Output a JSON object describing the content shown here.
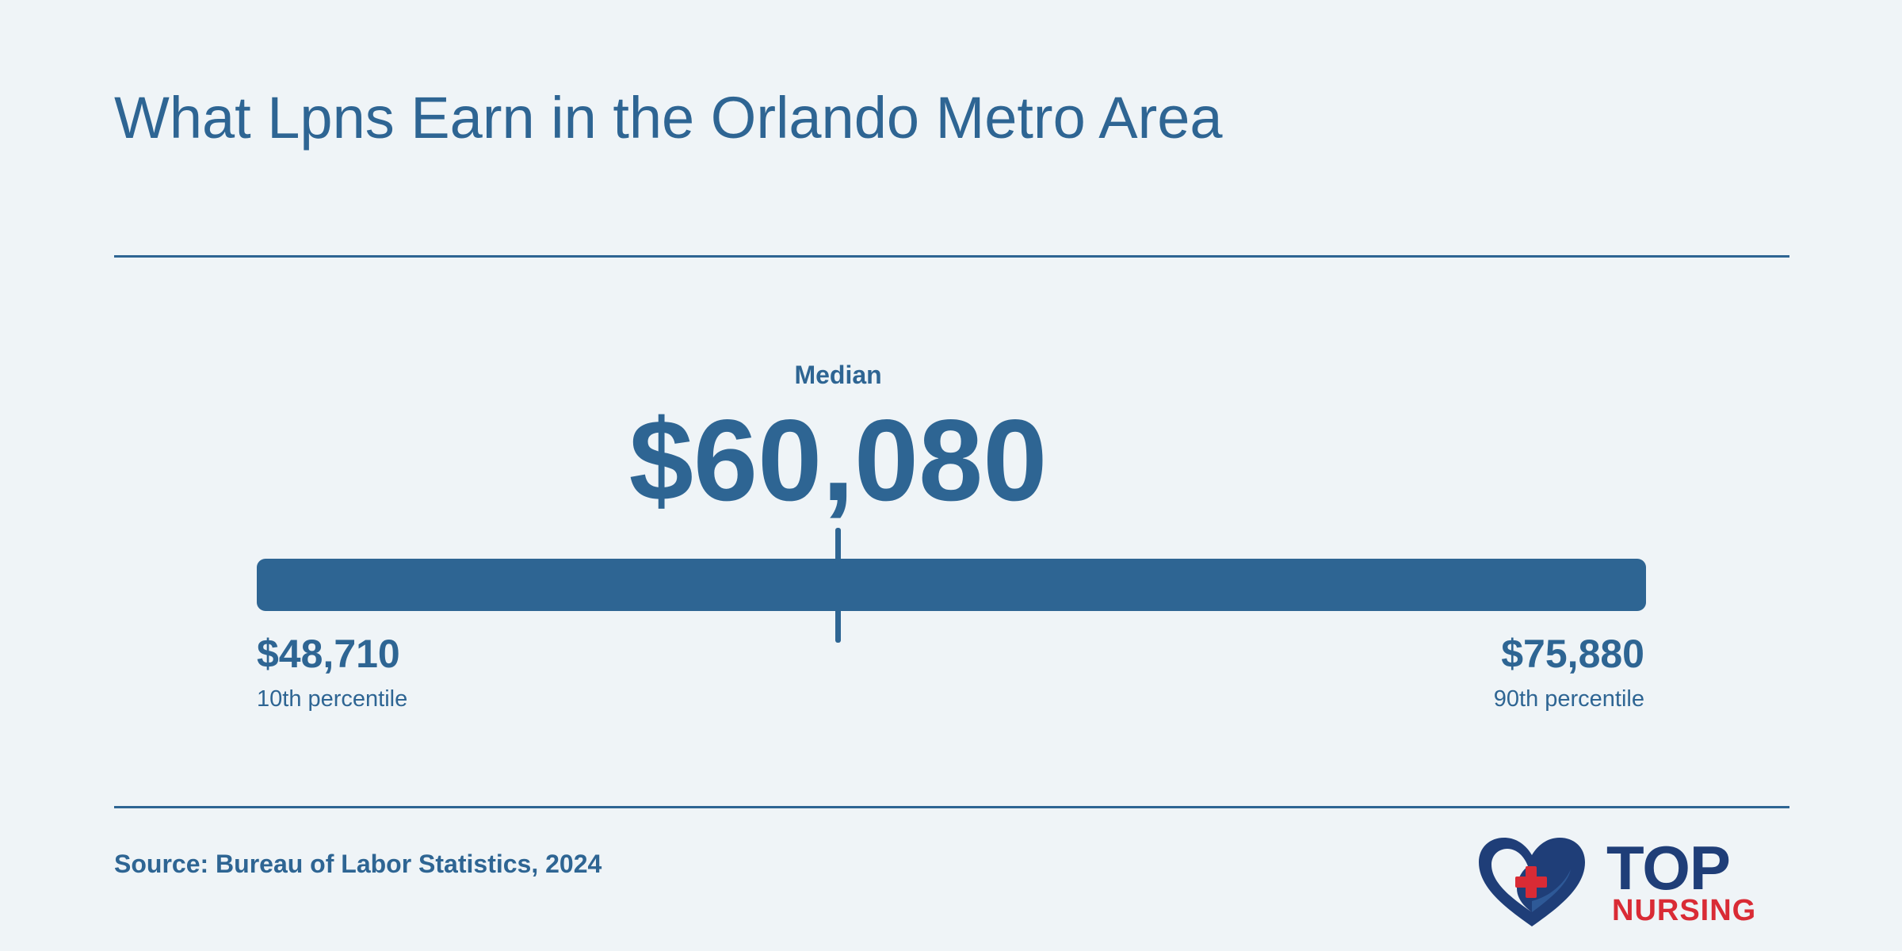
{
  "title": "What Lpns Earn in the Orlando Metro Area",
  "chart_data": {
    "type": "range",
    "unit": "USD",
    "min": 48710,
    "median": 60080,
    "max": 75880,
    "min_value_text": "$48,710",
    "median_value_text": "$60,080",
    "max_value_text": "$75,880",
    "min_label": "10th percentile",
    "median_label": "Median",
    "max_label": "90th percentile"
  },
  "source": "Source: Bureau of Labor Statistics, 2024",
  "logo": {
    "icon": "heart-cross-icon",
    "word1": "TOP",
    "word2": "NURSING"
  },
  "colors": {
    "background": "#eff4f7",
    "primary": "#2e6593",
    "logo_navy": "#1f3e78",
    "logo_red": "#d92b35"
  }
}
